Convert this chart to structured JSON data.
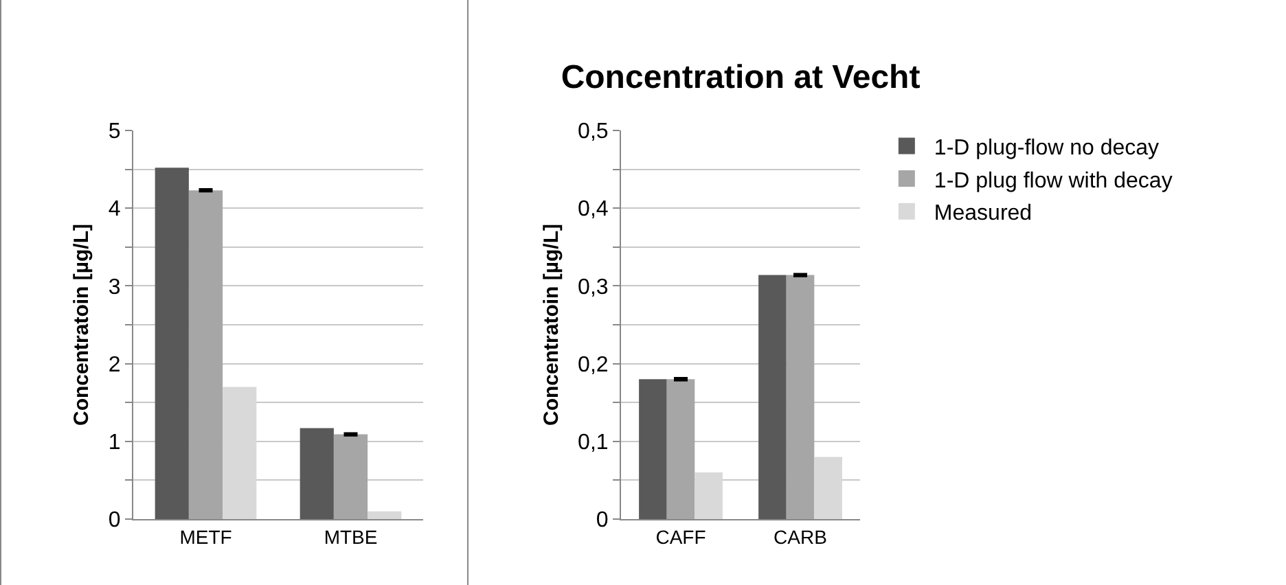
{
  "chart_data": [
    {
      "type": "bar",
      "ylabel": "Concentratoin [µg/L]",
      "categories": [
        "METF",
        "MTBE"
      ],
      "series": [
        {
          "color": "#595959",
          "values": [
            4.52,
            1.17
          ]
        },
        {
          "color": "#a6a6a6",
          "values": [
            4.23,
            1.09
          ],
          "errors": [
            0.01,
            0.01
          ]
        },
        {
          "color": "#d9d9d9",
          "values": [
            1.7,
            0.1
          ]
        }
      ],
      "ylim": [
        0,
        5
      ],
      "yticks": [
        0,
        {
          "value": 0.5,
          "label": null
        },
        1,
        {
          "value": 1.5,
          "label": null
        },
        2,
        {
          "value": 2.5,
          "label": null
        },
        3,
        {
          "value": 3.5,
          "label": null
        },
        4,
        {
          "value": 4.5,
          "label": null
        },
        5
      ],
      "grid": "y",
      "legend": false
    },
    {
      "type": "bar",
      "title": "Concentration at Vecht",
      "ylabel": "Concentratoin [µg/L]",
      "categories": [
        "CAFF",
        "CARB"
      ],
      "series": [
        {
          "name": "1-D plug-flow no decay",
          "color": "#595959",
          "values": [
            0.18,
            0.314
          ]
        },
        {
          "name": "1-D plug flow with decay",
          "color": "#a6a6a6",
          "values": [
            0.18,
            0.314
          ],
          "errors": [
            0.001,
            0.001
          ]
        },
        {
          "name": "Measured",
          "color": "#d9d9d9",
          "values": [
            0.06,
            0.08
          ]
        }
      ],
      "ylim": [
        0,
        0.5
      ],
      "yticks": [
        0,
        {
          "value": 0.05,
          "label": null
        },
        {
          "value": 0.1,
          "label": "0,1"
        },
        {
          "value": 0.15,
          "label": null
        },
        {
          "value": 0.2,
          "label": "0,2"
        },
        {
          "value": 0.25,
          "label": null
        },
        {
          "value": 0.3,
          "label": "0,3"
        },
        {
          "value": 0.35,
          "label": null
        },
        {
          "value": 0.4,
          "label": "0,4"
        },
        {
          "value": 0.45,
          "label": null
        },
        {
          "value": 0.5,
          "label": "0,5"
        }
      ],
      "grid": "y",
      "legend": "right"
    }
  ]
}
